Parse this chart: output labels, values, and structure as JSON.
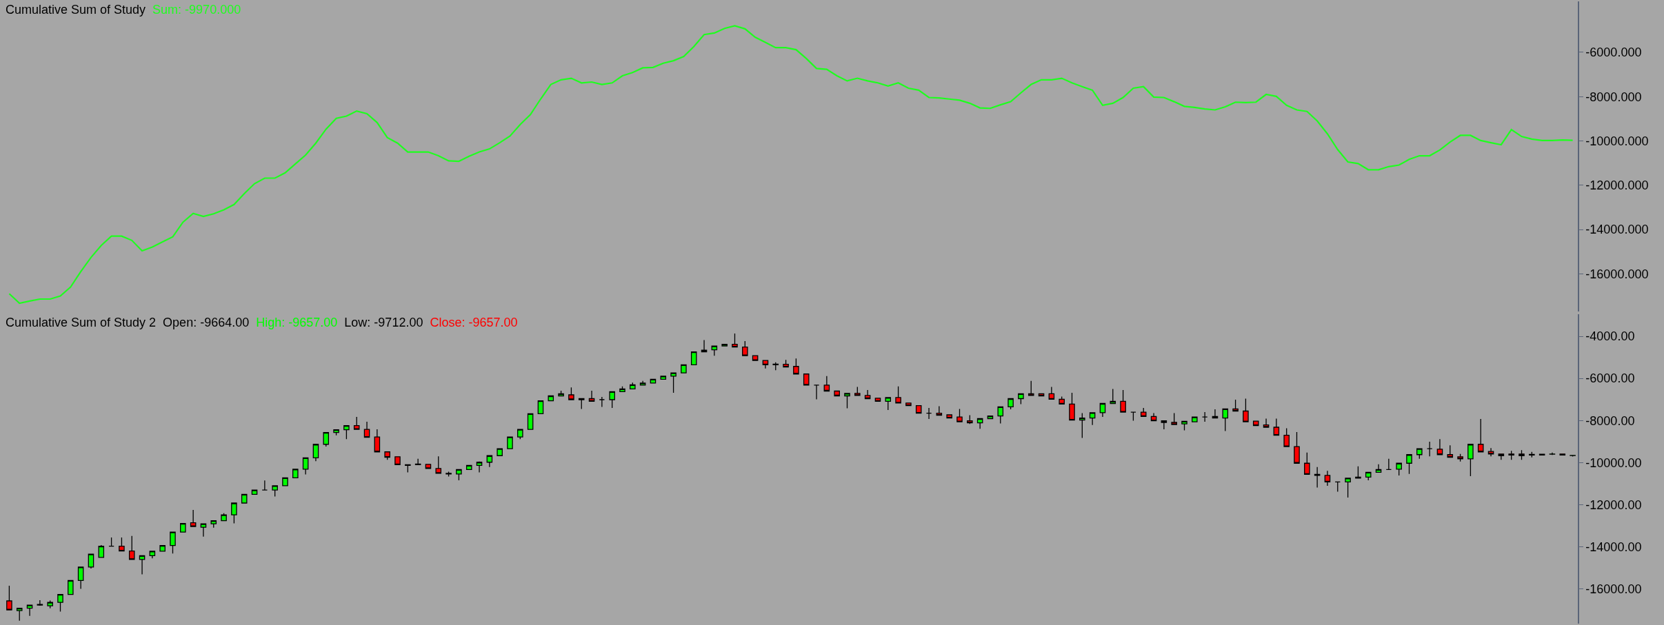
{
  "chart_data": [
    {
      "type": "line",
      "title": "Cumulative Sum of Study",
      "annotations": [
        "Sum: -9970.000"
      ],
      "categories": [
        null,
        null,
        null,
        null,
        null,
        null,
        null,
        null,
        null,
        null,
        null,
        null,
        null,
        null,
        null,
        null,
        null,
        null,
        null,
        null,
        null,
        null,
        null,
        null,
        null,
        null,
        null,
        null,
        null,
        null,
        null,
        null,
        null,
        null,
        null,
        null,
        null,
        null,
        null,
        null,
        null,
        null,
        null,
        null,
        null,
        null,
        null,
        null,
        null,
        null,
        null,
        null,
        null,
        null,
        null,
        null,
        null,
        null,
        null,
        null,
        null,
        null,
        null,
        null,
        null,
        null,
        null,
        null,
        null,
        null,
        null,
        null,
        null,
        null,
        null,
        null,
        null,
        null,
        null,
        null,
        null,
        null,
        null,
        null,
        null,
        null,
        null,
        null,
        null,
        null,
        null,
        null,
        null,
        null,
        null,
        null,
        null,
        null,
        null,
        null,
        null,
        null,
        null,
        null,
        null,
        null,
        null,
        null,
        null,
        null,
        null,
        null,
        null,
        null,
        null,
        null,
        null,
        null,
        null,
        null,
        null,
        null,
        null,
        null,
        null,
        null,
        null,
        null,
        null,
        null,
        null,
        null,
        null,
        null,
        null,
        null,
        null,
        null,
        null,
        null,
        null,
        null,
        null,
        null,
        null,
        null,
        null,
        null,
        null,
        null,
        null,
        null,
        null,
        null
      ],
      "series": [
        {
          "color": "#1eff1e",
          "values": [
            -16900,
            -17330,
            -17230,
            -17140,
            -17140,
            -17000,
            -16600,
            -15900,
            -15260,
            -14720,
            -14300,
            -14300,
            -14490,
            -14960,
            -14790,
            -14560,
            -14330,
            -13670,
            -13270,
            -13410,
            -13290,
            -13110,
            -12870,
            -12380,
            -11930,
            -11680,
            -11680,
            -11440,
            -11040,
            -10640,
            -10100,
            -9470,
            -8980,
            -8880,
            -8650,
            -8770,
            -9170,
            -9850,
            -10100,
            -10500,
            -10500,
            -10500,
            -10670,
            -10900,
            -10920,
            -10690,
            -10500,
            -10360,
            -10080,
            -9780,
            -9260,
            -8810,
            -8110,
            -7450,
            -7240,
            -7170,
            -7380,
            -7340,
            -7450,
            -7380,
            -7060,
            -6910,
            -6700,
            -6680,
            -6490,
            -6380,
            -6190,
            -5740,
            -5200,
            -5130,
            -4920,
            -4800,
            -4940,
            -5320,
            -5550,
            -5790,
            -5790,
            -5880,
            -6280,
            -6730,
            -6770,
            -7060,
            -7290,
            -7170,
            -7290,
            -7380,
            -7520,
            -7380,
            -7620,
            -7710,
            -8040,
            -8060,
            -8110,
            -8160,
            -8300,
            -8510,
            -8530,
            -8370,
            -8230,
            -7830,
            -7450,
            -7240,
            -7240,
            -7170,
            -7380,
            -7550,
            -7710,
            -8390,
            -8300,
            -8040,
            -7620,
            -7550,
            -8020,
            -8040,
            -8230,
            -8440,
            -8490,
            -8560,
            -8600,
            -8460,
            -8250,
            -8270,
            -8250,
            -7900,
            -7990,
            -8390,
            -8600,
            -8670,
            -9100,
            -9680,
            -10390,
            -10950,
            -11020,
            -11300,
            -11300,
            -11160,
            -11090,
            -10830,
            -10670,
            -10670,
            -10410,
            -10050,
            -9750,
            -9750,
            -9980,
            -10080,
            -10170,
            -9490,
            -9800,
            -9920,
            -9980,
            -9980,
            -9960,
            -9970
          ]
        }
      ],
      "ylim": [
        -17700,
        -3700
      ],
      "yticks": [
        {
          "value": -6000,
          "label": "-6000.000"
        },
        {
          "value": -8000,
          "label": "-8000.000"
        },
        {
          "value": -10000,
          "label": "-10000.000"
        },
        {
          "value": -12000,
          "label": "-12000.000"
        },
        {
          "value": -14000,
          "label": "-14000.000"
        },
        {
          "value": -16000,
          "label": "-16000.000"
        }
      ],
      "tick_labels": "y",
      "grid": false,
      "marker": "none",
      "line_style": "solid"
    },
    {
      "type": "candlestick",
      "title": "Cumulative Sum of Study 2",
      "annotations": [
        "Open: -9664.00",
        "High: -9657.00",
        "Low: -9712.00",
        "Close: -9657.00"
      ],
      "categories": [
        null,
        null,
        null,
        null,
        null,
        null,
        null,
        null,
        null,
        null,
        null,
        null,
        null,
        null,
        null,
        null,
        null,
        null,
        null,
        null,
        null,
        null,
        null,
        null,
        null,
        null,
        null,
        null,
        null,
        null,
        null,
        null,
        null,
        null,
        null,
        null,
        null,
        null,
        null,
        null,
        null,
        null,
        null,
        null,
        null,
        null,
        null,
        null,
        null,
        null,
        null,
        null,
        null,
        null,
        null,
        null,
        null,
        null,
        null,
        null,
        null,
        null,
        null,
        null,
        null,
        null,
        null,
        null,
        null,
        null,
        null,
        null,
        null,
        null,
        null,
        null,
        null,
        null,
        null,
        null,
        null,
        null,
        null,
        null,
        null,
        null,
        null,
        null,
        null,
        null,
        null,
        null,
        null,
        null,
        null,
        null,
        null,
        null,
        null,
        null,
        null,
        null,
        null,
        null,
        null,
        null,
        null,
        null,
        null,
        null,
        null,
        null,
        null,
        null,
        null,
        null,
        null,
        null,
        null,
        null,
        null,
        null,
        null,
        null,
        null,
        null,
        null,
        null,
        null,
        null,
        null,
        null,
        null,
        null,
        null,
        null,
        null,
        null,
        null,
        null,
        null,
        null,
        null,
        null,
        null,
        null,
        null,
        null,
        null,
        null,
        null,
        null,
        null,
        null
      ],
      "ohlc": [
        [
          -16570,
          -15850,
          -17000,
          -17000
        ],
        [
          -17030,
          -16920,
          -17510,
          -16920
        ],
        [
          -16920,
          -16750,
          -17280,
          -16770
        ],
        [
          -16770,
          -16540,
          -16800,
          -16740
        ],
        [
          -16800,
          -16550,
          -16920,
          -16640
        ],
        [
          -16640,
          -16260,
          -17080,
          -16260
        ],
        [
          -16260,
          -15600,
          -16260,
          -15600
        ],
        [
          -15600,
          -14960,
          -16000,
          -14960
        ],
        [
          -14960,
          -14350,
          -15030,
          -14350
        ],
        [
          -14500,
          -13920,
          -14500,
          -13970
        ],
        [
          -13970,
          -13560,
          -13970,
          -13970
        ],
        [
          -13970,
          -13560,
          -14200,
          -14200
        ],
        [
          -14200,
          -13480,
          -14600,
          -14600
        ],
        [
          -14600,
          -14420,
          -15310,
          -14420
        ],
        [
          -14420,
          -14210,
          -14550,
          -14210
        ],
        [
          -14210,
          -13940,
          -14210,
          -13940
        ],
        [
          -13940,
          -13300,
          -14320,
          -13300
        ],
        [
          -13300,
          -12890,
          -13300,
          -12890
        ],
        [
          -12860,
          -12250,
          -13040,
          -13040
        ],
        [
          -13070,
          -12910,
          -13520,
          -12910
        ],
        [
          -12910,
          -12760,
          -13090,
          -12760
        ],
        [
          -12760,
          -12400,
          -12760,
          -12480
        ],
        [
          -12480,
          -11920,
          -12890,
          -11920
        ],
        [
          -11920,
          -11510,
          -11920,
          -11510
        ],
        [
          -11510,
          -11300,
          -11510,
          -11300
        ],
        [
          -11300,
          -10850,
          -11300,
          -11300
        ],
        [
          -11300,
          -11100,
          -11610,
          -11100
        ],
        [
          -11100,
          -10720,
          -11100,
          -10720
        ],
        [
          -10720,
          -10310,
          -10720,
          -10310
        ],
        [
          -10310,
          -9770,
          -10560,
          -9770
        ],
        [
          -9770,
          -9130,
          -9930,
          -9130
        ],
        [
          -9130,
          -8570,
          -9240,
          -8570
        ],
        [
          -8570,
          -8440,
          -8700,
          -8440
        ],
        [
          -8440,
          -8240,
          -8880,
          -8240
        ],
        [
          -8240,
          -7830,
          -8420,
          -8420
        ],
        [
          -8420,
          -8060,
          -8800,
          -8800
        ],
        [
          -8780,
          -8420,
          -9490,
          -9490
        ],
        [
          -9490,
          -9490,
          -9870,
          -9750
        ],
        [
          -9720,
          -9720,
          -10100,
          -10100
        ],
        [
          -10100,
          -10100,
          -10460,
          -10130
        ],
        [
          -10100,
          -9820,
          -10100,
          -10070
        ],
        [
          -10080,
          -10080,
          -10280,
          -10280
        ],
        [
          -10280,
          -9700,
          -10510,
          -10510
        ],
        [
          -10540,
          -10430,
          -10660,
          -10510
        ],
        [
          -10540,
          -10330,
          -10840,
          -10330
        ],
        [
          -10330,
          -10130,
          -10330,
          -10130
        ],
        [
          -10130,
          -9950,
          -10460,
          -9980
        ],
        [
          -9980,
          -9670,
          -10210,
          -9670
        ],
        [
          -9670,
          -9340,
          -9670,
          -9340
        ],
        [
          -9340,
          -8780,
          -9340,
          -8780
        ],
        [
          -8780,
          -8420,
          -8880,
          -8420
        ],
        [
          -8420,
          -7680,
          -8420,
          -7680
        ],
        [
          -7680,
          -7060,
          -7680,
          -7060
        ],
        [
          -7060,
          -6830,
          -7060,
          -6830
        ],
        [
          -6830,
          -6580,
          -6830,
          -6730
        ],
        [
          -6780,
          -6430,
          -7010,
          -7010
        ],
        [
          -7010,
          -6960,
          -7450,
          -6960
        ],
        [
          -6960,
          -6580,
          -7090,
          -7090
        ],
        [
          -7010,
          -6880,
          -7350,
          -7010
        ],
        [
          -7010,
          -6630,
          -7400,
          -6630
        ],
        [
          -6630,
          -6380,
          -6630,
          -6500
        ],
        [
          -6500,
          -6200,
          -6500,
          -6300
        ],
        [
          -6320,
          -6120,
          -6320,
          -6220
        ],
        [
          -6220,
          -6040,
          -6220,
          -6040
        ],
        [
          -6040,
          -5890,
          -6040,
          -5890
        ],
        [
          -5890,
          -5740,
          -6680,
          -5740
        ],
        [
          -5740,
          -5350,
          -5740,
          -5350
        ],
        [
          -5350,
          -4740,
          -5350,
          -4740
        ],
        [
          -4740,
          -4180,
          -4740,
          -4660
        ],
        [
          -4640,
          -4460,
          -4920,
          -4460
        ],
        [
          -4460,
          -4380,
          -4460,
          -4380
        ],
        [
          -4380,
          -3870,
          -4510,
          -4510
        ],
        [
          -4510,
          -4230,
          -4920,
          -4920
        ],
        [
          -4920,
          -4920,
          -5150,
          -5150
        ],
        [
          -5150,
          -5150,
          -5530,
          -5350
        ],
        [
          -5350,
          -5230,
          -5610,
          -5320
        ],
        [
          -5330,
          -5120,
          -5460,
          -5460
        ],
        [
          -5430,
          -5050,
          -5790,
          -5790
        ],
        [
          -5790,
          -5790,
          -6320,
          -6320
        ],
        [
          -6320,
          -6320,
          -6990,
          -6320
        ],
        [
          -6320,
          -5890,
          -6600,
          -6600
        ],
        [
          -6600,
          -6600,
          -6830,
          -6830
        ],
        [
          -6830,
          -6710,
          -7420,
          -6710
        ],
        [
          -6710,
          -6400,
          -6810,
          -6810
        ],
        [
          -6810,
          -6550,
          -6960,
          -6960
        ],
        [
          -6940,
          -6940,
          -7090,
          -7090
        ],
        [
          -7090,
          -6910,
          -7500,
          -6910
        ],
        [
          -6910,
          -6380,
          -7170,
          -7170
        ],
        [
          -7170,
          -7170,
          -7290,
          -7290
        ],
        [
          -7290,
          -7290,
          -7650,
          -7650
        ],
        [
          -7650,
          -7400,
          -7930,
          -7650
        ],
        [
          -7650,
          -7320,
          -7750,
          -7750
        ],
        [
          -7730,
          -7730,
          -7880,
          -7880
        ],
        [
          -7830,
          -7450,
          -8060,
          -8060
        ],
        [
          -8010,
          -7750,
          -8160,
          -8110
        ],
        [
          -8110,
          -7910,
          -8390,
          -7910
        ],
        [
          -7910,
          -7780,
          -7910,
          -7780
        ],
        [
          -7780,
          -7350,
          -8140,
          -7350
        ],
        [
          -7350,
          -6960,
          -7470,
          -6960
        ],
        [
          -6960,
          -6730,
          -7220,
          -6730
        ],
        [
          -6730,
          -6120,
          -6810,
          -6810
        ],
        [
          -6730,
          -6730,
          -6830,
          -6830
        ],
        [
          -6730,
          -6400,
          -6990,
          -6990
        ],
        [
          -6990,
          -6860,
          -7220,
          -7220
        ],
        [
          -7220,
          -6680,
          -7980,
          -7980
        ],
        [
          -7980,
          -7650,
          -8830,
          -7880
        ],
        [
          -7880,
          -7630,
          -8210,
          -7630
        ],
        [
          -7630,
          -7190,
          -7830,
          -7190
        ],
        [
          -7190,
          -6500,
          -7190,
          -7090
        ],
        [
          -7090,
          -6550,
          -7600,
          -7600
        ],
        [
          -7600,
          -7600,
          -8010,
          -7600
        ],
        [
          -7600,
          -7400,
          -7810,
          -7810
        ],
        [
          -7810,
          -7650,
          -8010,
          -8010
        ],
        [
          -8010,
          -8010,
          -8420,
          -8090
        ],
        [
          -8090,
          -7650,
          -8190,
          -8190
        ],
        [
          -8160,
          -8040,
          -8470,
          -8040
        ],
        [
          -8060,
          -7830,
          -8060,
          -7830
        ],
        [
          -7830,
          -7600,
          -8060,
          -7830
        ],
        [
          -7810,
          -7470,
          -7880,
          -7880
        ],
        [
          -7880,
          -7450,
          -8500,
          -7450
        ],
        [
          -7450,
          -7010,
          -7550,
          -7550
        ],
        [
          -7550,
          -6960,
          -8060,
          -8060
        ],
        [
          -8030,
          -8030,
          -8240,
          -8240
        ],
        [
          -8210,
          -7910,
          -8320,
          -8320
        ],
        [
          -8320,
          -7910,
          -8700,
          -8700
        ],
        [
          -8700,
          -8370,
          -9240,
          -9240
        ],
        [
          -9240,
          -8550,
          -10030,
          -10030
        ],
        [
          -10030,
          -9520,
          -10560,
          -10560
        ],
        [
          -10560,
          -10210,
          -11180,
          -10610
        ],
        [
          -10610,
          -10390,
          -11100,
          -10920
        ],
        [
          -10920,
          -10920,
          -11380,
          -10920
        ],
        [
          -10920,
          -10740,
          -11660,
          -10740
        ],
        [
          -10740,
          -10180,
          -10740,
          -10690
        ],
        [
          -10690,
          -10460,
          -10840,
          -10460
        ],
        [
          -10460,
          -10080,
          -10460,
          -10330
        ],
        [
          -10330,
          -9820,
          -10330,
          -10330
        ],
        [
          -10310,
          -10030,
          -10610,
          -10030
        ],
        [
          -10030,
          -9620,
          -10540,
          -9620
        ],
        [
          -9620,
          -9340,
          -9820,
          -9340
        ],
        [
          -9340,
          -9010,
          -9700,
          -9340
        ],
        [
          -9360,
          -8880,
          -9620,
          -9620
        ],
        [
          -9620,
          -9180,
          -9750,
          -9750
        ],
        [
          -9720,
          -9590,
          -9950,
          -9820
        ],
        [
          -9820,
          -9130,
          -10640,
          -9130
        ],
        [
          -9130,
          -7930,
          -9490,
          -9490
        ],
        [
          -9470,
          -9310,
          -9700,
          -9590
        ],
        [
          -9590,
          -9590,
          -9870,
          -9670
        ],
        [
          -9590,
          -9440,
          -9870,
          -9640
        ],
        [
          -9590,
          -9410,
          -9870,
          -9670
        ],
        [
          -9640,
          -9490,
          -9750,
          -9610
        ],
        [
          -9640,
          -9600,
          -9640,
          -9600
        ],
        [
          -9600,
          -9520,
          -9640,
          -9590
        ],
        [
          -9590,
          -9590,
          -9640,
          -9640
        ],
        [
          -9664,
          -9657,
          -9712,
          -9657
        ]
      ],
      "ylim": [
        -17650,
        -2950
      ],
      "yticks": [
        {
          "value": -4000,
          "label": "-4000.00"
        },
        {
          "value": -6000,
          "label": "-6000.00"
        },
        {
          "value": -8000,
          "label": "-8000.00"
        },
        {
          "value": -10000,
          "label": "-10000.00"
        },
        {
          "value": -12000,
          "label": "-12000.00"
        },
        {
          "value": -14000,
          "label": "-14000.00"
        },
        {
          "value": -16000,
          "label": "-16000.00"
        }
      ],
      "tick_labels": "y",
      "grid": false
    }
  ]
}
